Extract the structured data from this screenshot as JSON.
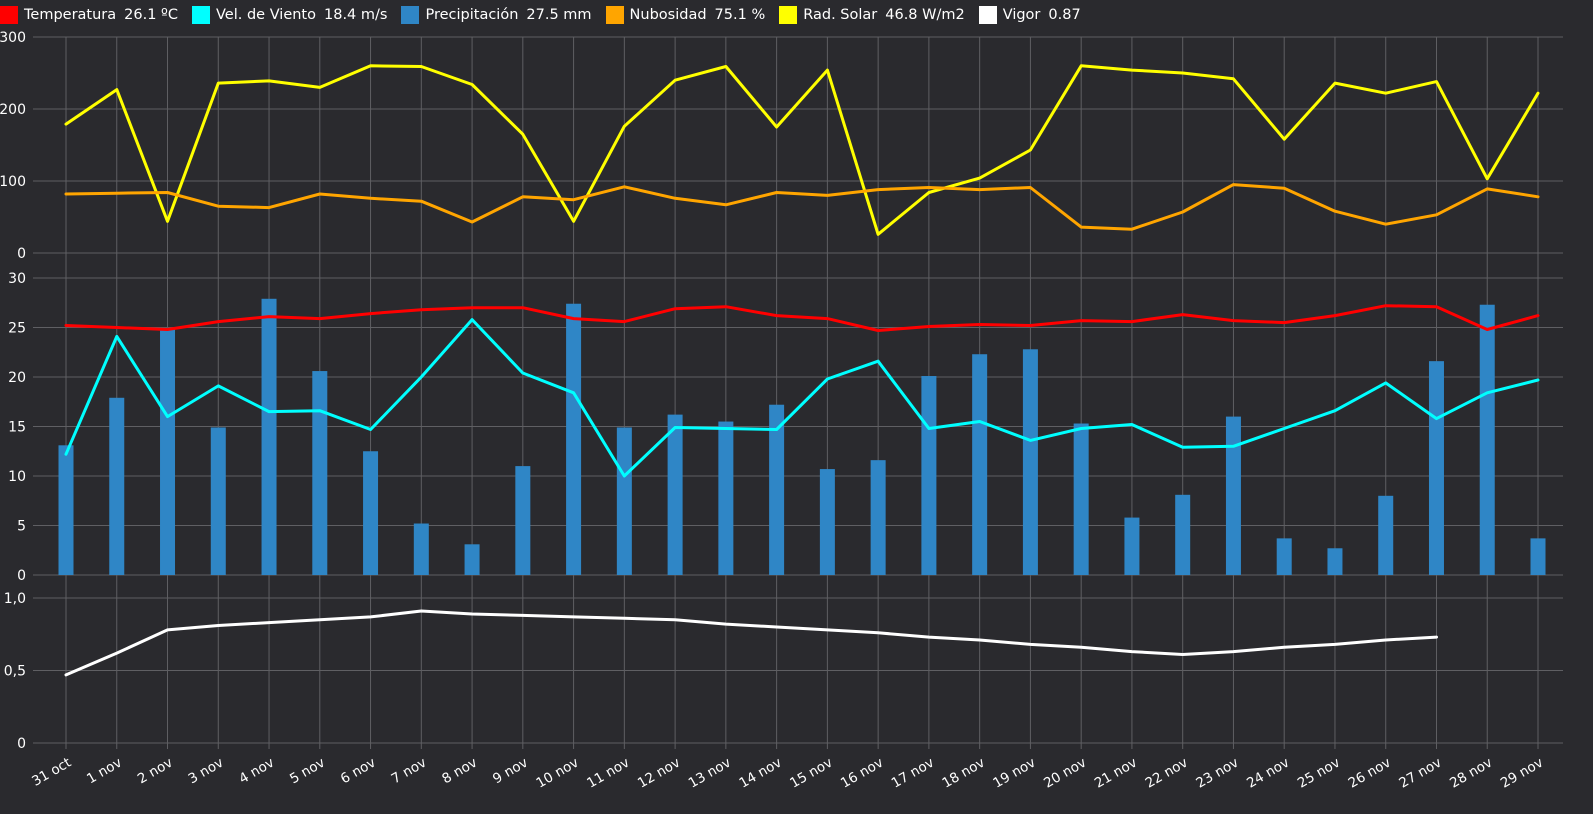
{
  "legend": [
    {
      "key": "temp",
      "name": "Temperatura",
      "value": "26.1 ºC",
      "color": "#ff0000"
    },
    {
      "key": "wind",
      "name": "Vel. de Viento",
      "value": "18.4 m/s",
      "color": "#00ffff"
    },
    {
      "key": "precip",
      "name": "Precipitación",
      "value": "27.5 mm",
      "color": "#2f86c6"
    },
    {
      "key": "cloud",
      "name": "Nubosidad",
      "value": "75.1 %",
      "color": "#ffa500"
    },
    {
      "key": "solar",
      "name": "Rad. Solar",
      "value": "46.8 W/m2",
      "color": "#ffff00"
    },
    {
      "key": "vigor",
      "name": "Vigor",
      "value": "0.87",
      "color": "#ffffff"
    }
  ],
  "chart_data": [
    {
      "type": "line",
      "panel": "top",
      "categories": [
        "31 oct",
        "1 nov",
        "2 nov",
        "3 nov",
        "4 nov",
        "5 nov",
        "6 nov",
        "7 nov",
        "8 nov",
        "9 nov",
        "10 nov",
        "11 nov",
        "12 nov",
        "13 nov",
        "14 nov",
        "15 nov",
        "16 nov",
        "17 nov",
        "18 nov",
        "19 nov",
        "20 nov",
        "21 nov",
        "22 nov",
        "23 nov",
        "24 nov",
        "25 nov",
        "26 nov",
        "27 nov",
        "28 nov",
        "29 nov"
      ],
      "ylim": [
        0,
        300
      ],
      "yticks": [
        "0",
        "100",
        "200",
        "300"
      ],
      "series": [
        {
          "name": "Rad. Solar",
          "color": "#ffff00",
          "values": [
            179,
            227,
            44,
            236,
            239,
            230,
            260,
            259,
            234,
            165,
            44,
            176,
            240,
            259,
            175,
            254,
            26,
            84,
            104,
            143,
            260,
            254,
            250,
            242,
            158,
            236,
            222,
            238,
            103,
            222
          ]
        },
        {
          "name": "Nubosidad",
          "color": "#ffa500",
          "values": [
            82,
            83,
            84,
            65,
            63,
            82,
            76,
            72,
            43,
            78,
            74,
            92,
            76,
            67,
            84,
            80,
            88,
            91,
            88,
            91,
            36,
            33,
            57,
            95,
            90,
            58,
            40,
            53,
            89,
            78
          ]
        }
      ]
    },
    {
      "type": "bar+line",
      "panel": "middle",
      "categories": [
        "31 oct",
        "1 nov",
        "2 nov",
        "3 nov",
        "4 nov",
        "5 nov",
        "6 nov",
        "7 nov",
        "8 nov",
        "9 nov",
        "10 nov",
        "11 nov",
        "12 nov",
        "13 nov",
        "14 nov",
        "15 nov",
        "16 nov",
        "17 nov",
        "18 nov",
        "19 nov",
        "20 nov",
        "21 nov",
        "22 nov",
        "23 nov",
        "24 nov",
        "25 nov",
        "26 nov",
        "27 nov",
        "28 nov",
        "29 nov"
      ],
      "ylim": [
        0,
        30
      ],
      "yticks": [
        "0",
        "5",
        "10",
        "15",
        "20",
        "25",
        "30"
      ],
      "series": [
        {
          "name": "Precipitación",
          "type": "bar",
          "color": "#2f86c6",
          "values": [
            13.1,
            17.9,
            24.8,
            14.9,
            27.9,
            20.6,
            12.5,
            5.2,
            3.1,
            11.0,
            27.4,
            14.9,
            16.2,
            15.5,
            17.2,
            10.7,
            11.6,
            20.1,
            22.3,
            22.8,
            15.3,
            5.8,
            8.1,
            16.0,
            3.7,
            2.7,
            8.0,
            21.6,
            27.3,
            3.7
          ]
        },
        {
          "name": "Vel. de Viento",
          "type": "line",
          "color": "#00ffff",
          "values": [
            12.2,
            24.1,
            16.0,
            19.1,
            16.5,
            16.6,
            14.7,
            20.0,
            25.8,
            20.4,
            18.4,
            10.0,
            14.9,
            14.8,
            14.7,
            19.8,
            21.6,
            14.8,
            15.5,
            13.6,
            14.8,
            15.2,
            12.9,
            13.0,
            14.8,
            16.6,
            19.4,
            15.8,
            18.4,
            19.7
          ]
        },
        {
          "name": "Temperatura",
          "type": "line",
          "color": "#ff0000",
          "values": [
            25.2,
            25.0,
            24.8,
            25.6,
            26.1,
            25.9,
            26.4,
            26.8,
            27.0,
            27.0,
            25.9,
            25.6,
            26.9,
            27.1,
            26.2,
            25.9,
            24.7,
            25.1,
            25.3,
            25.2,
            25.7,
            25.6,
            26.3,
            25.7,
            25.5,
            26.2,
            27.2,
            27.1,
            24.8,
            26.2
          ]
        }
      ]
    },
    {
      "type": "line",
      "panel": "bottom",
      "categories": [
        "31 oct",
        "1 nov",
        "2 nov",
        "3 nov",
        "4 nov",
        "5 nov",
        "6 nov",
        "7 nov",
        "8 nov",
        "9 nov",
        "10 nov",
        "11 nov",
        "12 nov",
        "13 nov",
        "14 nov",
        "15 nov",
        "16 nov",
        "17 nov",
        "18 nov",
        "19 nov",
        "20 nov",
        "21 nov",
        "22 nov",
        "23 nov",
        "24 nov",
        "25 nov",
        "26 nov",
        "27 nov",
        "28 nov",
        "29 nov"
      ],
      "ylim": [
        0,
        1
      ],
      "yticks": [
        "0",
        "0,5",
        "1,0"
      ],
      "series": [
        {
          "name": "Vigor",
          "color": "#ffffff",
          "values": [
            0.47,
            0.62,
            0.78,
            0.81,
            0.83,
            0.85,
            0.87,
            0.91,
            0.89,
            0.88,
            0.87,
            0.86,
            0.85,
            0.82,
            0.8,
            0.78,
            0.76,
            0.73,
            0.71,
            0.68,
            0.66,
            0.63,
            0.61,
            0.63,
            0.66,
            0.68,
            0.71,
            0.73,
            null,
            null
          ]
        }
      ]
    }
  ]
}
